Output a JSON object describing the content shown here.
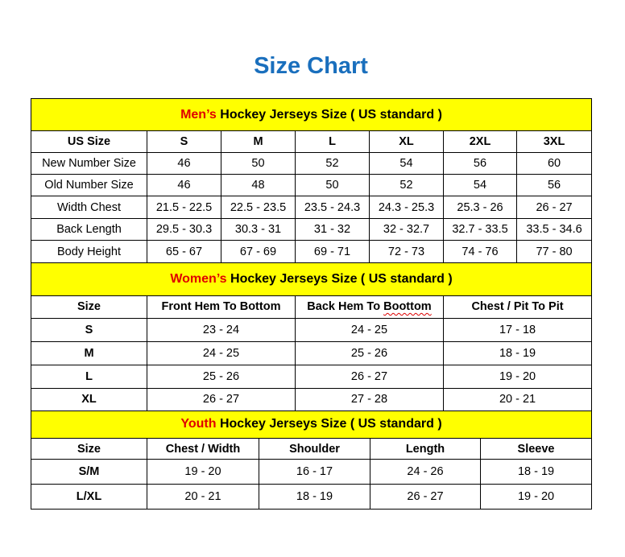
{
  "title": "Size Chart",
  "colors": {
    "title": "#1a6fbd",
    "section_bg": "#ffff00",
    "highlight": "#e00000"
  },
  "sections": [
    {
      "highlight": "Men’s",
      "heading": " Hockey Jerseys Size ( US standard )",
      "columns": [
        "US Size",
        "S",
        "M",
        "L",
        "XL",
        "2XL",
        "3XL"
      ],
      "rows": [
        [
          "New Number Size",
          "46",
          "50",
          "52",
          "54",
          "56",
          "60"
        ],
        [
          "Old Number Size",
          "46",
          "48",
          "50",
          "52",
          "54",
          "56"
        ],
        [
          "Width Chest",
          "21.5 - 22.5",
          "22.5 - 23.5",
          "23.5 - 24.3",
          "24.3 - 25.3",
          "25.3 - 26",
          "26 - 27"
        ],
        [
          "Back Length",
          "29.5 - 30.3",
          "30.3 - 31",
          "31 - 32",
          "32 - 32.7",
          "32.7 - 33.5",
          "33.5 - 34.6"
        ],
        [
          "Body Height",
          "65 - 67",
          "67 - 69",
          "69 - 71",
          "72 - 73",
          "74 - 76",
          "77 - 80"
        ]
      ]
    },
    {
      "highlight": "Women’s",
      "heading": " Hockey Jerseys Size ( US standard )",
      "columns": [
        "Size",
        "Front Hem To Bottom",
        "Back Hem To Boottom",
        "Chest / Pit To Pit"
      ],
      "rows": [
        [
          "S",
          "23 - 24",
          "24 - 25",
          "17 - 18"
        ],
        [
          "M",
          "24 - 25",
          "25 - 26",
          "18 - 19"
        ],
        [
          "L",
          "25 - 26",
          "26 - 27",
          "19 - 20"
        ],
        [
          "XL",
          "26 - 27",
          "27 - 28",
          "20 - 21"
        ]
      ]
    },
    {
      "highlight": "Youth",
      "heading": " Hockey Jerseys Size ( US standard )",
      "columns": [
        "Size",
        "Chest / Width",
        "Shoulder",
        "Length",
        "Sleeve"
      ],
      "rows": [
        [
          "S/M",
          "19 - 20",
          "16 - 17",
          "24 - 26",
          "18 - 19"
        ],
        [
          "L/XL",
          "20 - 21",
          "18 - 19",
          "26 - 27",
          "19 - 20"
        ]
      ]
    }
  ]
}
